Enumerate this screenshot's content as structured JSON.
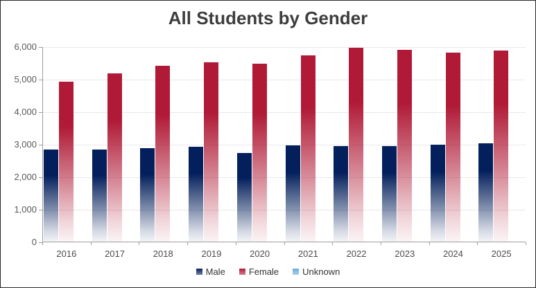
{
  "chart_data": {
    "type": "bar",
    "title": "All Students by Gender",
    "categories": [
      "2016",
      "2017",
      "2018",
      "2019",
      "2020",
      "2021",
      "2022",
      "2023",
      "2024",
      "2025"
    ],
    "series": [
      {
        "name": "Male",
        "color": "#04205C",
        "values": [
          2820,
          2830,
          2880,
          2920,
          2730,
          2950,
          2930,
          2930,
          2980,
          3020
        ]
      },
      {
        "name": "Female",
        "color": "#B01A36",
        "values": [
          4910,
          5170,
          5400,
          5520,
          5470,
          5730,
          5960,
          5890,
          5800,
          5870
        ]
      },
      {
        "name": "Unknown",
        "color": "#66ACDF",
        "values": [
          0,
          0,
          0,
          0,
          0,
          0,
          0,
          0,
          0,
          0
        ]
      }
    ],
    "xlabel": "",
    "ylabel": "",
    "ylim": [
      0,
      6000
    ],
    "yticks": [
      0,
      1000,
      2000,
      3000,
      4000,
      5000,
      6000
    ],
    "ytick_labels": [
      "0",
      "1,000",
      "2,000",
      "3,000",
      "4,000",
      "5,000",
      "6,000"
    ],
    "grid": true,
    "legend_position": "bottom",
    "bar_style": "vertical gradient, solid color at top fading to white at bottom"
  },
  "colors": {
    "title_text": "#3d3d3d",
    "axis_text": "#595959",
    "axis_line": "#9b9b9b",
    "gridline": "#e8e8e8",
    "frame_border": "#262626",
    "background": "#ffffff"
  }
}
